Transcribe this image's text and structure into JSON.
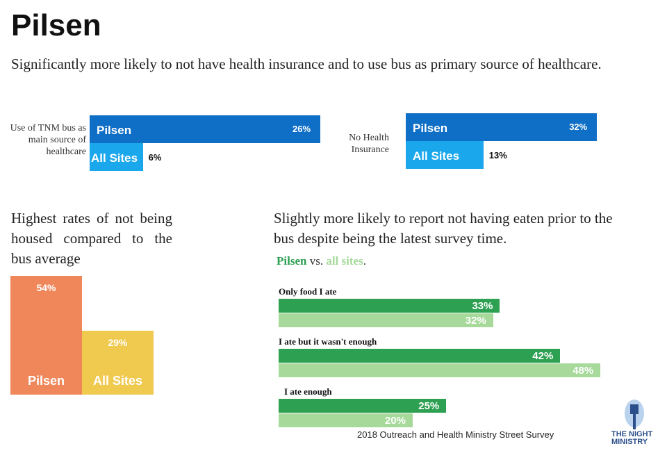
{
  "title": "Pilsen",
  "subtitle": "Significantly more likely to not have health insurance and to use bus as primary source of healthcare.",
  "housed_text": "Highest rates of not being housed compared to the bus average",
  "eaten_text": "Slightly more likely to report not having eaten prior to the bus despite being the latest survey time.",
  "eaten_legend": {
    "pilsen": "Pilsen",
    "vs": " vs. ",
    "all": "all sites",
    "end": "."
  },
  "footer": "2018 Outreach and Health Ministry Street Survey",
  "logo": {
    "text": "THE NIGHT MINISTRY",
    "icon": "lamp-post-icon"
  },
  "colors": {
    "blue_dark": "#0f6fc6",
    "blue_light": "#1aa7ec",
    "orange": "#f0875a",
    "yellow": "#f0c94f",
    "green_dark": "#2ea052",
    "green_light": "#a6d99a"
  },
  "chart_data": [
    {
      "type": "bar",
      "orientation": "horizontal",
      "label": "Use of TNM bus as main source of healthcare",
      "categories": [
        "Pilsen",
        "All Sites"
      ],
      "values": [
        26,
        6
      ],
      "value_labels": [
        "26%",
        "6%"
      ]
    },
    {
      "type": "bar",
      "orientation": "horizontal",
      "label": "No Health Insurance",
      "categories": [
        "Pilsen",
        "All Sites"
      ],
      "values": [
        32,
        13
      ],
      "value_labels": [
        "32%",
        "13%"
      ]
    },
    {
      "type": "bar",
      "orientation": "vertical",
      "label": "Not housed",
      "categories": [
        "Pilsen",
        "All Sites"
      ],
      "values": [
        54,
        29
      ],
      "value_labels": [
        "54%",
        "29%"
      ]
    },
    {
      "type": "bar",
      "orientation": "horizontal",
      "label": "Eating prior to the bus",
      "categories": [
        "Only food I ate",
        "I ate but it wasn't enough",
        "I ate enough"
      ],
      "series": [
        {
          "name": "Pilsen",
          "values": [
            33,
            42,
            25
          ],
          "value_labels": [
            "33%",
            "42%",
            "25%"
          ]
        },
        {
          "name": "all sites",
          "values": [
            32,
            48,
            20
          ],
          "value_labels": [
            "32%",
            "48%",
            "20%"
          ]
        }
      ]
    }
  ]
}
